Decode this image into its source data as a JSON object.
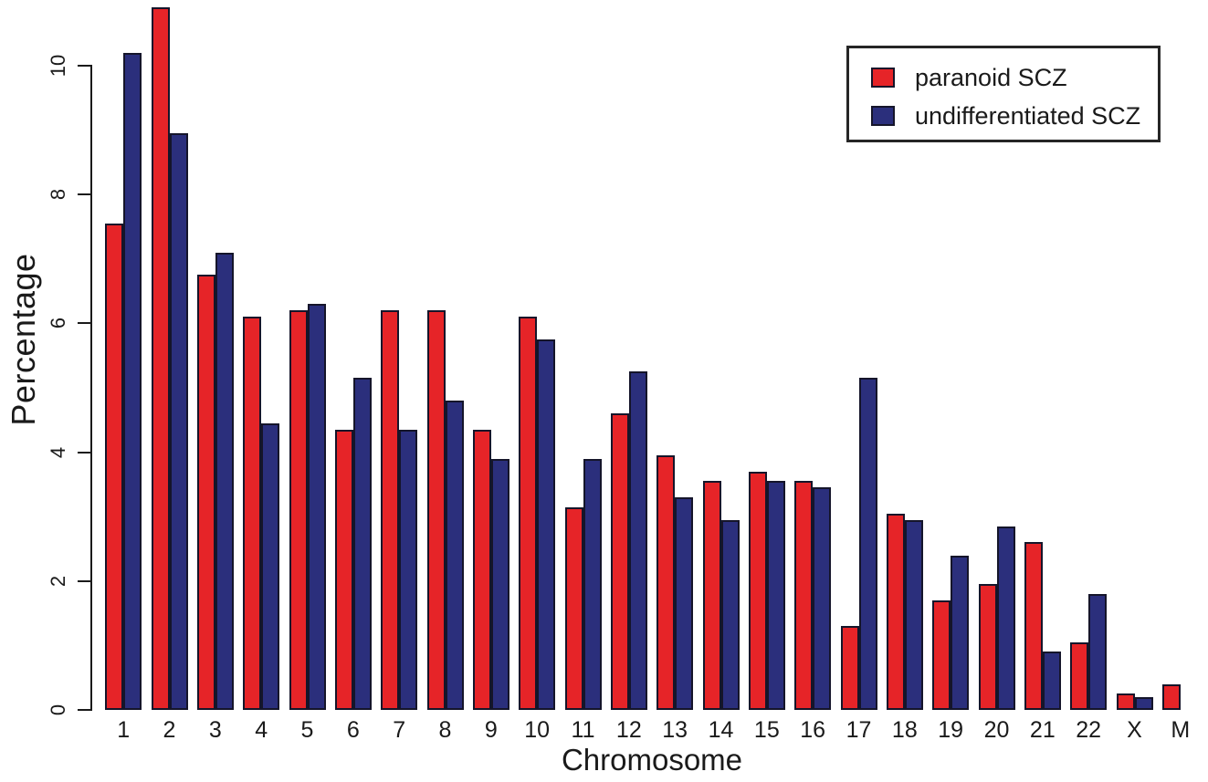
{
  "figure": {
    "background_color": "#ffffff",
    "text_color": "#1a1a1a"
  },
  "chart_data": {
    "type": "bar",
    "title": "",
    "xlabel": "Chromosome",
    "ylabel": "Percentage",
    "categories": [
      "1",
      "2",
      "3",
      "4",
      "5",
      "6",
      "7",
      "8",
      "9",
      "10",
      "11",
      "12",
      "13",
      "14",
      "15",
      "16",
      "17",
      "18",
      "19",
      "20",
      "21",
      "22",
      "X",
      "M"
    ],
    "y_ticks": [
      0,
      2,
      4,
      6,
      8,
      10
    ],
    "ylim": [
      0,
      11
    ],
    "grid": false,
    "legend_position": "top-right",
    "bar_border_color": "#15152a",
    "series": [
      {
        "name": "paranoid SCZ",
        "color": "#e62428",
        "values": [
          7.55,
          10.9,
          6.75,
          6.1,
          6.2,
          4.35,
          6.2,
          6.2,
          4.35,
          6.1,
          3.15,
          4.6,
          3.95,
          3.55,
          3.7,
          3.55,
          1.3,
          3.05,
          1.7,
          1.95,
          2.6,
          1.05,
          0.25,
          0.4
        ]
      },
      {
        "name": "undifferentiated SCZ",
        "color": "#2b2f7c",
        "values": [
          10.2,
          8.95,
          7.1,
          4.45,
          6.3,
          5.15,
          4.35,
          4.8,
          3.9,
          5.75,
          3.9,
          5.25,
          3.3,
          2.95,
          3.55,
          3.45,
          5.15,
          2.95,
          2.4,
          2.85,
          0.9,
          1.8,
          0.2,
          0
        ]
      }
    ]
  }
}
